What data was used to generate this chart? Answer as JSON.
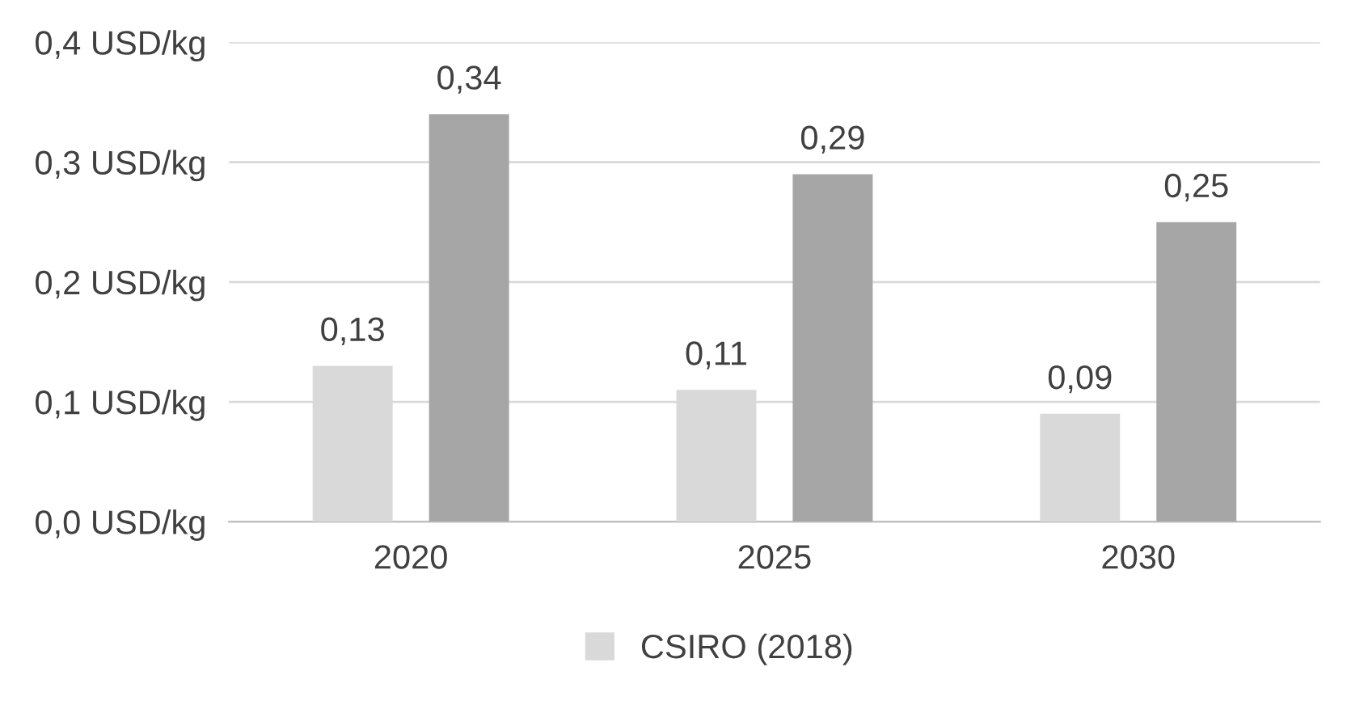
{
  "chart_data": {
    "type": "bar",
    "categories": [
      "2020",
      "2025",
      "2030"
    ],
    "series": [
      {
        "name": "CSIRO (2018)",
        "color": "#d9d9d9",
        "values": [
          0.13,
          0.11,
          0.09
        ],
        "value_labels": [
          "0,13",
          "0,11",
          "0,09"
        ]
      },
      {
        "color": "#a6a6a6",
        "values": [
          0.34,
          0.29,
          0.25
        ],
        "value_labels": [
          "0,34",
          "0,29",
          "0,25"
        ]
      }
    ],
    "ylim": [
      0,
      0.4
    ],
    "yticks": [
      {
        "value": 0,
        "label": "0,0 USD/kg"
      },
      {
        "value": 0.1,
        "label": "0,1 USD/kg"
      },
      {
        "value": 0.2,
        "label": "0,2 USD/kg"
      },
      {
        "value": 0.3,
        "label": "0,3 USD/kg"
      },
      {
        "value": 0.4,
        "label": "0,4 USD/kg"
      }
    ],
    "grid": "y",
    "legend": "bottom"
  }
}
